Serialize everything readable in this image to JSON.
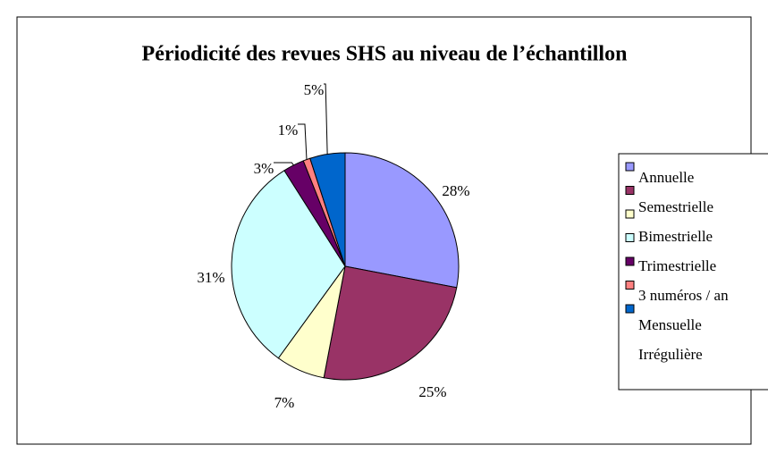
{
  "chart_data": {
    "type": "pie",
    "title": "Périodicité des revues SHS au niveau de l’échantillon",
    "categories": [
      "Annuelle",
      "Semestrielle",
      "Bimestrielle",
      "Trimestrielle",
      "3 numéros / an",
      "Mensuelle",
      "Irrégulière"
    ],
    "values": [
      28,
      25,
      7,
      31,
      3,
      1,
      5
    ],
    "value_labels": [
      "28%",
      "25%",
      "7%",
      "31%",
      "3%",
      "1%",
      "5%"
    ],
    "colors": [
      "#9999ff",
      "#993366",
      "#ffffcc",
      "#ccffff",
      "#660066",
      "#ff8080",
      "#0066cc"
    ],
    "legend": "right"
  }
}
